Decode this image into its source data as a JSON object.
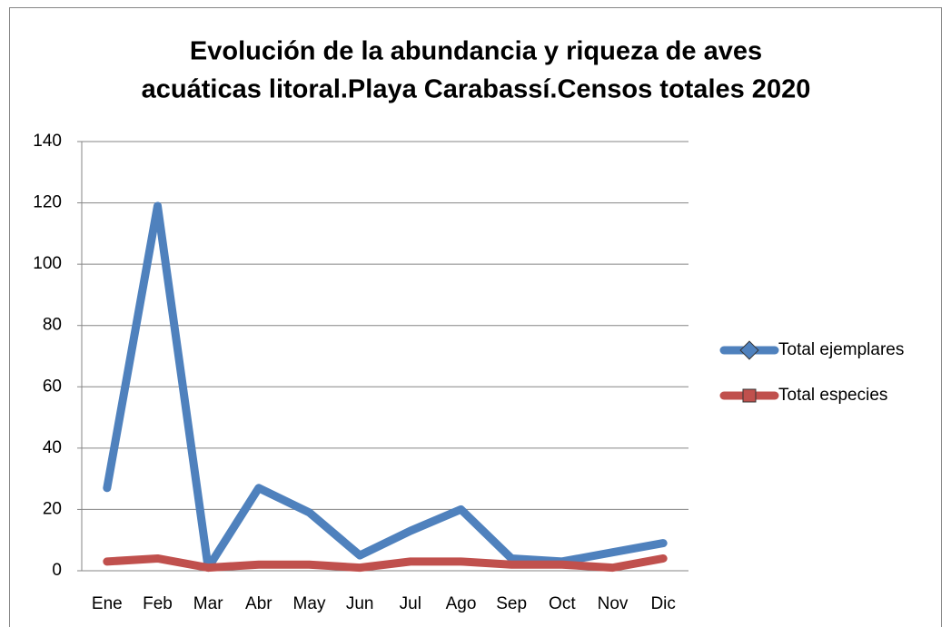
{
  "chart_data": {
    "type": "line",
    "title": [
      "Evolución de la abundancia y riqueza de aves",
      "acuáticas litoral.Playa Carabassí.Censos totales 2020"
    ],
    "categories": [
      "Ene",
      "Feb",
      "Mar",
      "Abr",
      "May",
      "Jun",
      "Jul",
      "Ago",
      "Sep",
      "Oct",
      "Nov",
      "Dic"
    ],
    "series": [
      {
        "name": "Total ejemplares",
        "color": "#4f81bd",
        "values": [
          27,
          119,
          1,
          27,
          19,
          5,
          13,
          20,
          4,
          3,
          6,
          9
        ]
      },
      {
        "name": "Total especies",
        "color": "#c0504d",
        "values": [
          3,
          4,
          1,
          2,
          2,
          1,
          3,
          3,
          2,
          2,
          1,
          4
        ]
      }
    ],
    "ylim": [
      0,
      140
    ],
    "yticks": [
      0,
      20,
      40,
      60,
      80,
      100,
      120,
      140
    ],
    "grid": true,
    "legend": "right"
  }
}
